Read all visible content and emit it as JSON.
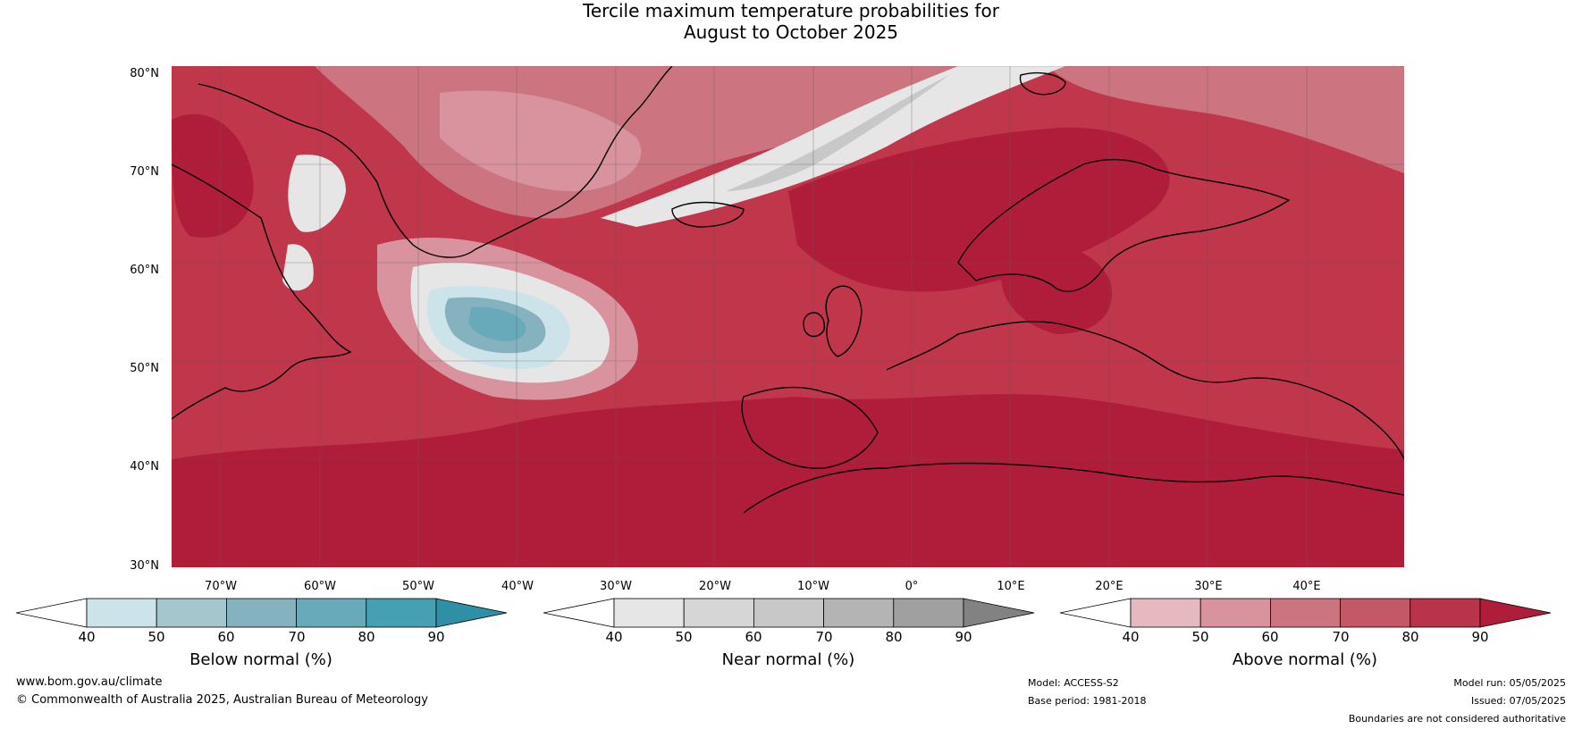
{
  "title": {
    "line1": "Tercile maximum temperature probabilities for",
    "line2": "August to October 2025"
  },
  "lat_labels": [
    "80°N",
    "70°N",
    "60°N",
    "50°N",
    "40°N",
    "30°N"
  ],
  "lon_labels": [
    "70°W",
    "60°W",
    "50°W",
    "40°W",
    "30°W",
    "20°W",
    "10°W",
    "0°",
    "10°E",
    "20°E",
    "30°E",
    "40°E"
  ],
  "legends": {
    "below": {
      "label": "Below normal (%)",
      "ticks": [
        "40",
        "50",
        "60",
        "70",
        "80",
        "90"
      ],
      "colors": [
        "#ffffff",
        "#cce3ea",
        "#a6c6ce",
        "#86b2c0",
        "#68a9ba",
        "#45a0b3",
        "#2e8fa6"
      ]
    },
    "near": {
      "label": "Near normal (%)",
      "ticks": [
        "40",
        "50",
        "60",
        "70",
        "80",
        "90"
      ],
      "colors": [
        "#ffffff",
        "#e6e6e6",
        "#d6d6d6",
        "#c8c8c8",
        "#b4b4b4",
        "#a0a0a0",
        "#828282"
      ]
    },
    "above": {
      "label": "Above normal (%)",
      "ticks": [
        "40",
        "50",
        "60",
        "70",
        "80",
        "90"
      ],
      "colors": [
        "#ffffff",
        "#e6b9c1",
        "#d9939e",
        "#cc7580",
        "#c35866",
        "#b9334a",
        "#b01d3a"
      ]
    }
  },
  "footer": {
    "website": "www.bom.gov.au/climate",
    "copyright": "© Commonwealth of Australia 2025, Australian Bureau of Meteorology",
    "model": "Model: ACCESS-S2",
    "base_period": "Base period: 1981-2018",
    "model_run": "Model run: 05/05/2025",
    "issued": "Issued: 07/05/2025",
    "disclaimer": "Boundaries are not considered authoritative"
  }
}
